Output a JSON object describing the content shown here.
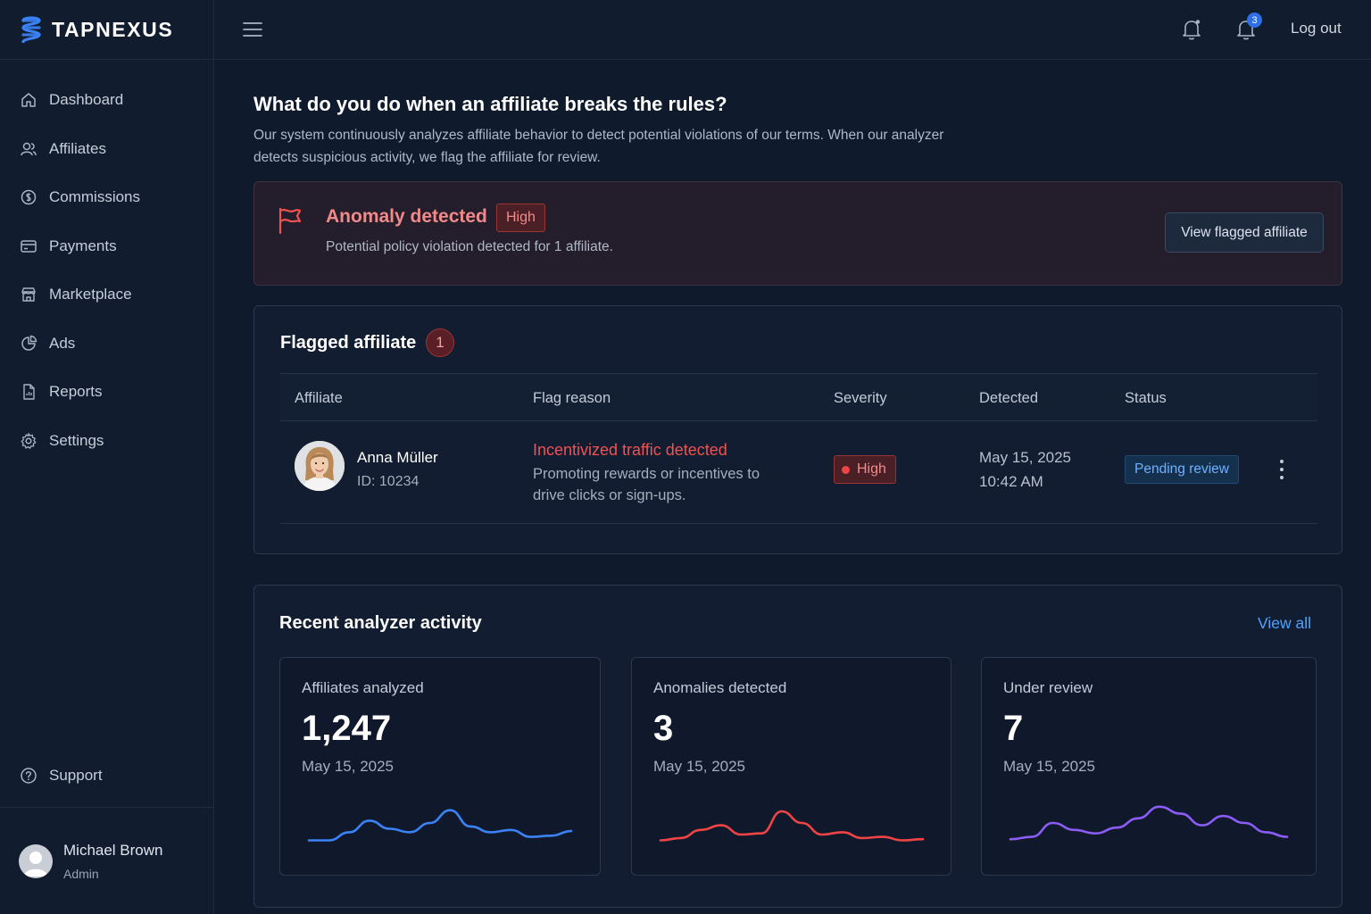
{
  "brand": {
    "name": "TAPNEXUS"
  },
  "sidebar": {
    "items": [
      {
        "label": "Dashboard",
        "icon": "home-icon"
      },
      {
        "label": "Affiliates",
        "icon": "users-icon"
      },
      {
        "label": "Commissions",
        "icon": "commission-icon"
      },
      {
        "label": "Payments",
        "icon": "card-icon"
      },
      {
        "label": "Marketplace",
        "icon": "store-icon"
      },
      {
        "label": "Ads",
        "icon": "pie-chart-icon"
      },
      {
        "label": "Reports",
        "icon": "report-icon"
      },
      {
        "label": "Settings",
        "icon": "gear-icon"
      }
    ],
    "support_label": "Support",
    "user": {
      "name": "Michael Brown",
      "role": "Admin"
    }
  },
  "topbar": {
    "notification_count": "3",
    "logout_label": "Log out"
  },
  "page": {
    "title": "What do you do when an affiliate breaks the rules?",
    "description": "Our system continuously analyzes affiliate behavior to detect potential violations of our terms. When our analyzer detects suspicious activity, we flag the affiliate for review."
  },
  "alert": {
    "title": "Anomaly detected",
    "severity": "High",
    "message": "Potential policy violation detected for 1 affiliate.",
    "button_label": "View flagged affiliate"
  },
  "flagged": {
    "title": "Flagged affiliate",
    "count": "1",
    "columns": [
      "Affiliate",
      "Flag reason",
      "Severity",
      "Detected",
      "Status"
    ],
    "rows": [
      {
        "name": "Anna Müller",
        "id": "ID: 10234",
        "reason_title": "Incentivized traffic detected",
        "reason_desc": "Promoting rewards or incentives to drive clicks or sign-ups.",
        "severity": "High",
        "date": "May 15, 2025",
        "time": "10:42 AM",
        "status": "Pending review"
      }
    ]
  },
  "activity": {
    "title": "Recent analyzer activity",
    "view_all_label": "View all",
    "stats": [
      {
        "label": "Affiliates analyzed",
        "value": "1,247",
        "date": "May 15, 2025",
        "color": "#3b82f6",
        "trend": [
          5,
          5,
          12,
          22,
          15,
          12,
          20,
          31,
          17,
          12,
          14,
          8,
          9,
          13
        ]
      },
      {
        "label": "Anomalies detected",
        "value": "3",
        "date": "May 15, 2025",
        "color": "#ef4444",
        "trend": [
          5,
          7,
          14,
          18,
          10,
          11,
          30,
          20,
          10,
          12,
          7,
          8,
          5,
          6
        ]
      },
      {
        "label": "Under review",
        "value": "7",
        "date": "May 15, 2025",
        "color": "#8b5cf6",
        "trend": [
          6,
          8,
          20,
          14,
          11,
          16,
          24,
          34,
          28,
          18,
          26,
          20,
          12,
          8
        ]
      }
    ]
  },
  "colors": {
    "accent": "#4da3ff",
    "danger": "#ef4444",
    "background": "#0f1a2c"
  }
}
